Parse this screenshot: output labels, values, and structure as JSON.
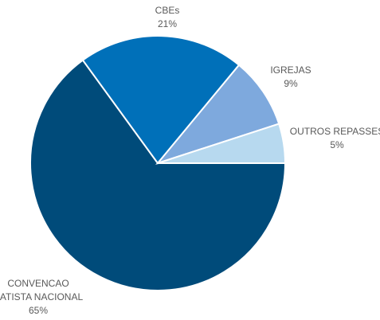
{
  "chart_data": {
    "type": "pie",
    "title": "",
    "slices": [
      {
        "label": "CONVENCAO BATISTA NACIONAL",
        "label_lines": [
          "CONVENCAO",
          "BATISTA NACIONAL"
        ],
        "value": 65,
        "value_label": "65%",
        "color": "#004b7a"
      },
      {
        "label": "CBEs",
        "label_lines": [
          "CBEs"
        ],
        "value": 21,
        "value_label": "21%",
        "color": "#0070b9"
      },
      {
        "label": "IGREJAS",
        "label_lines": [
          "IGREJAS"
        ],
        "value": 9,
        "value_label": "9%",
        "color": "#7ea9dd"
      },
      {
        "label": "OUTROS REPASSES",
        "label_lines": [
          "OUTROS REPASSES"
        ],
        "value": 5,
        "value_label": "5%",
        "color": "#b7d9ef"
      }
    ],
    "start_angle_deg": 90,
    "direction": "counterclockwise",
    "slice_border_color": "#ffffff"
  }
}
